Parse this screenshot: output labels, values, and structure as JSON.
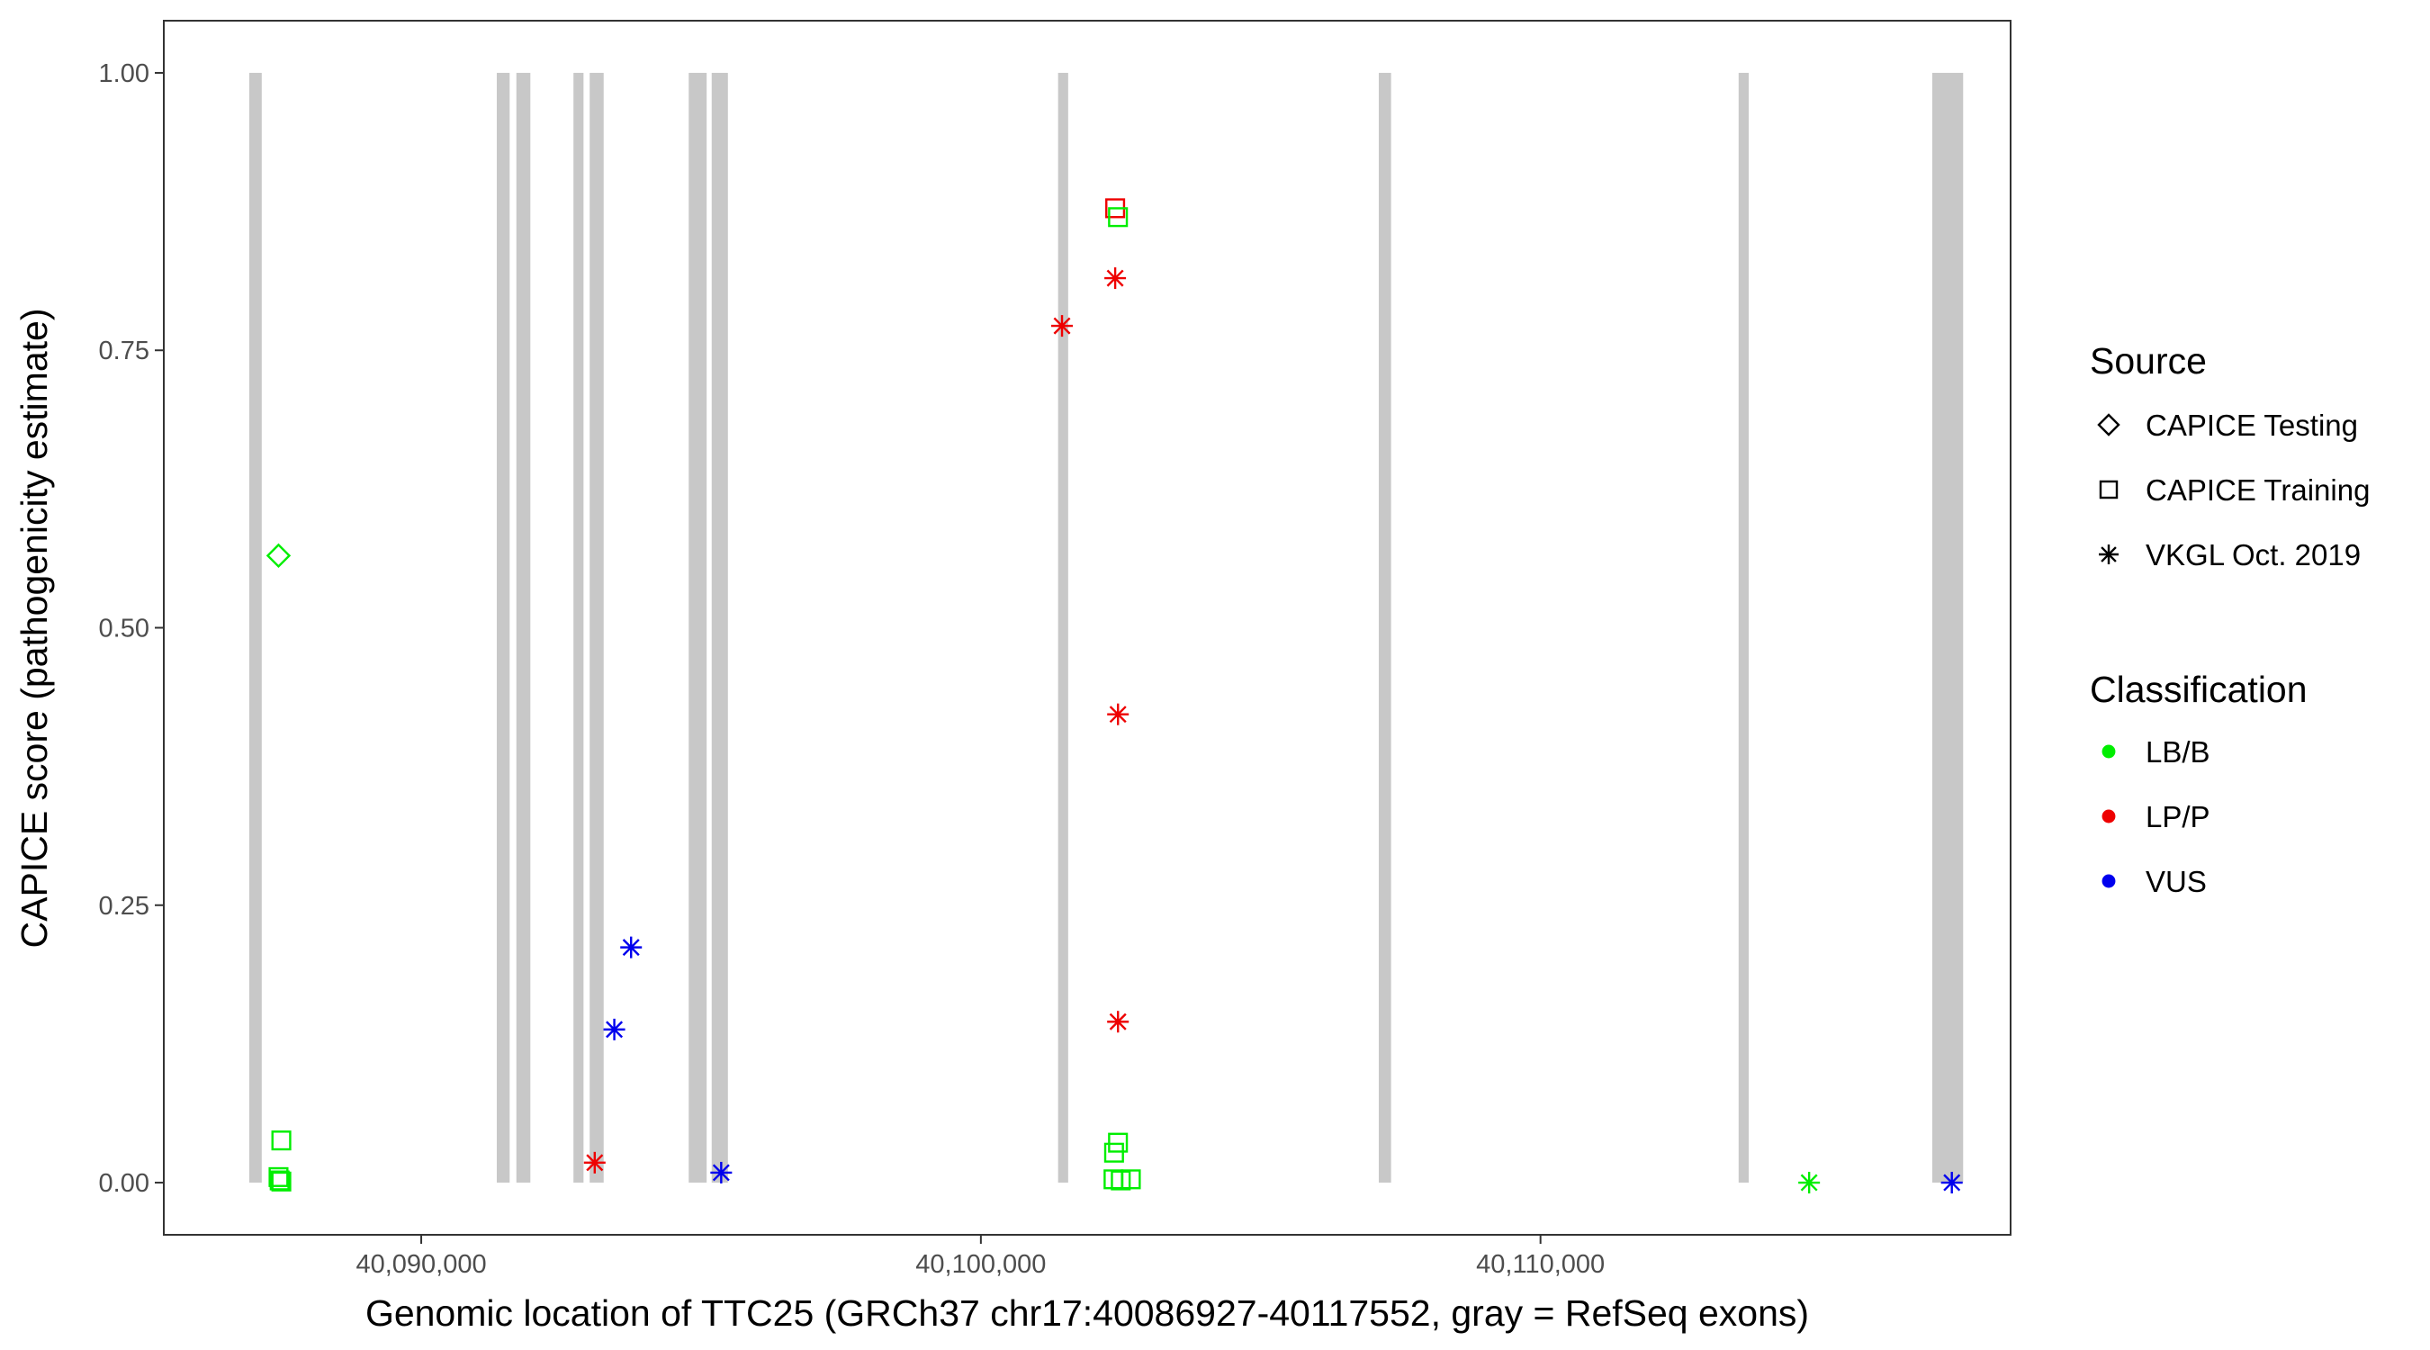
{
  "chart_data": {
    "type": "scatter",
    "xlabel": "Genomic location of TTC25 (GRCh37 chr17:40086927-40117552, gray = RefSeq exons)",
    "ylabel": "CAPICE score (pathogenicity estimate)",
    "xlim": [
      40085400,
      40118400
    ],
    "ylim": [
      -0.047,
      1.047
    ],
    "x_ticks": [
      40090000,
      40100000,
      40110000
    ],
    "x_tick_labels": [
      "40,090,000",
      "40,100,000",
      "40,110,000"
    ],
    "y_ticks": [
      0,
      0.25,
      0.5,
      0.75,
      1.0
    ],
    "y_tick_labels": [
      "0.00",
      "0.25",
      "0.50",
      "0.75",
      "1.00"
    ],
    "grid": false,
    "exon_color": "#c8c8c8",
    "exons": [
      [
        40086927,
        40087150
      ],
      [
        40091350,
        40091580
      ],
      [
        40091700,
        40091950
      ],
      [
        40092720,
        40092900
      ],
      [
        40093010,
        40093260
      ],
      [
        40094780,
        40095100
      ],
      [
        40095190,
        40095480
      ],
      [
        40101380,
        40101560
      ],
      [
        40107110,
        40107330
      ],
      [
        40113540,
        40113720
      ],
      [
        40117000,
        40117552
      ]
    ],
    "legend_source": {
      "title": "Source",
      "entries": [
        {
          "label": "CAPICE Testing",
          "shape": "diamond"
        },
        {
          "label": "CAPICE Training",
          "shape": "square"
        },
        {
          "label": "VKGL Oct. 2019",
          "shape": "asterisk"
        }
      ]
    },
    "legend_classification": {
      "title": "Classification",
      "entries": [
        {
          "label": "LB/B",
          "color": "#00ee00"
        },
        {
          "label": "LP/P",
          "color": "#ee0000"
        },
        {
          "label": "VUS",
          "color": "#0000ee"
        }
      ]
    },
    "legend_placement": "right",
    "points": [
      {
        "x": 40087450,
        "y": 0.565,
        "source": "CAPICE Testing",
        "class": "LB/B"
      },
      {
        "x": 40087500,
        "y": 0.038,
        "source": "CAPICE Training",
        "class": "LB/B"
      },
      {
        "x": 40087450,
        "y": 0.005,
        "source": "CAPICE Training",
        "class": "LB/B"
      },
      {
        "x": 40087470,
        "y": 0.002,
        "source": "CAPICE Training",
        "class": "LB/B"
      },
      {
        "x": 40087500,
        "y": 0.001,
        "source": "CAPICE Training",
        "class": "LB/B"
      },
      {
        "x": 40093100,
        "y": 0.018,
        "source": "VKGL Oct. 2019",
        "class": "LP/P"
      },
      {
        "x": 40093450,
        "y": 0.138,
        "source": "VKGL Oct. 2019",
        "class": "VUS"
      },
      {
        "x": 40093750,
        "y": 0.212,
        "source": "VKGL Oct. 2019",
        "class": "VUS"
      },
      {
        "x": 40095360,
        "y": 0.009,
        "source": "VKGL Oct. 2019",
        "class": "VUS"
      },
      {
        "x": 40101450,
        "y": 0.772,
        "source": "VKGL Oct. 2019",
        "class": "LP/P"
      },
      {
        "x": 40102400,
        "y": 0.878,
        "source": "CAPICE Training",
        "class": "LP/P"
      },
      {
        "x": 40102450,
        "y": 0.87,
        "source": "CAPICE Training",
        "class": "LB/B"
      },
      {
        "x": 40102400,
        "y": 0.815,
        "source": "VKGL Oct. 2019",
        "class": "LP/P"
      },
      {
        "x": 40102450,
        "y": 0.422,
        "source": "VKGL Oct. 2019",
        "class": "LP/P"
      },
      {
        "x": 40102450,
        "y": 0.145,
        "source": "VKGL Oct. 2019",
        "class": "LP/P"
      },
      {
        "x": 40102450,
        "y": 0.036,
        "source": "CAPICE Training",
        "class": "LB/B"
      },
      {
        "x": 40102380,
        "y": 0.027,
        "source": "CAPICE Training",
        "class": "LB/B"
      },
      {
        "x": 40102370,
        "y": 0.003,
        "source": "CAPICE Training",
        "class": "LB/B"
      },
      {
        "x": 40102500,
        "y": 0.002,
        "source": "CAPICE Training",
        "class": "LB/B"
      },
      {
        "x": 40102680,
        "y": 0.003,
        "source": "CAPICE Training",
        "class": "LB/B"
      },
      {
        "x": 40114800,
        "y": 0.0,
        "source": "VKGL Oct. 2019",
        "class": "LB/B"
      },
      {
        "x": 40117350,
        "y": 0.0,
        "source": "VKGL Oct. 2019",
        "class": "VUS"
      }
    ]
  }
}
